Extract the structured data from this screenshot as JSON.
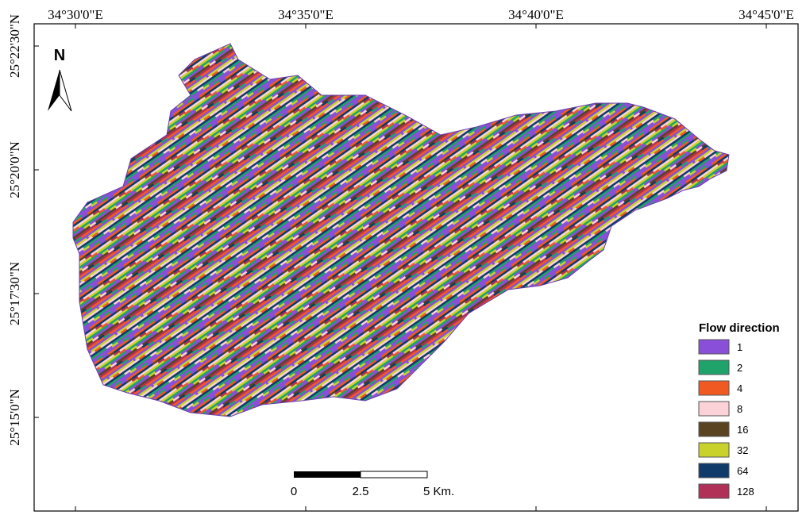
{
  "map": {
    "north_label": "N",
    "longitude_labels": [
      "34°30'0\"E",
      "34°35'0\"E",
      "34°40'0\"E",
      "34°45'0\"E"
    ],
    "latitude_labels": [
      "25°22'30\"N",
      "25°20'0\"N",
      "25°17'30\"N",
      "25°15'0\"N"
    ],
    "legend": {
      "title": "Flow direction",
      "items": [
        {
          "label": "1",
          "color": "#8a4fd8"
        },
        {
          "label": "2",
          "color": "#1fa36a"
        },
        {
          "label": "4",
          "color": "#f05a22"
        },
        {
          "label": "8",
          "color": "#fad2d8"
        },
        {
          "label": "16",
          "color": "#5a4320"
        },
        {
          "label": "32",
          "color": "#c8d22a"
        },
        {
          "label": "64",
          "color": "#103a6a"
        },
        {
          "label": "128",
          "color": "#b03058"
        }
      ]
    },
    "scale_bar": [
      "0",
      "2.5",
      "5 Km."
    ]
  }
}
